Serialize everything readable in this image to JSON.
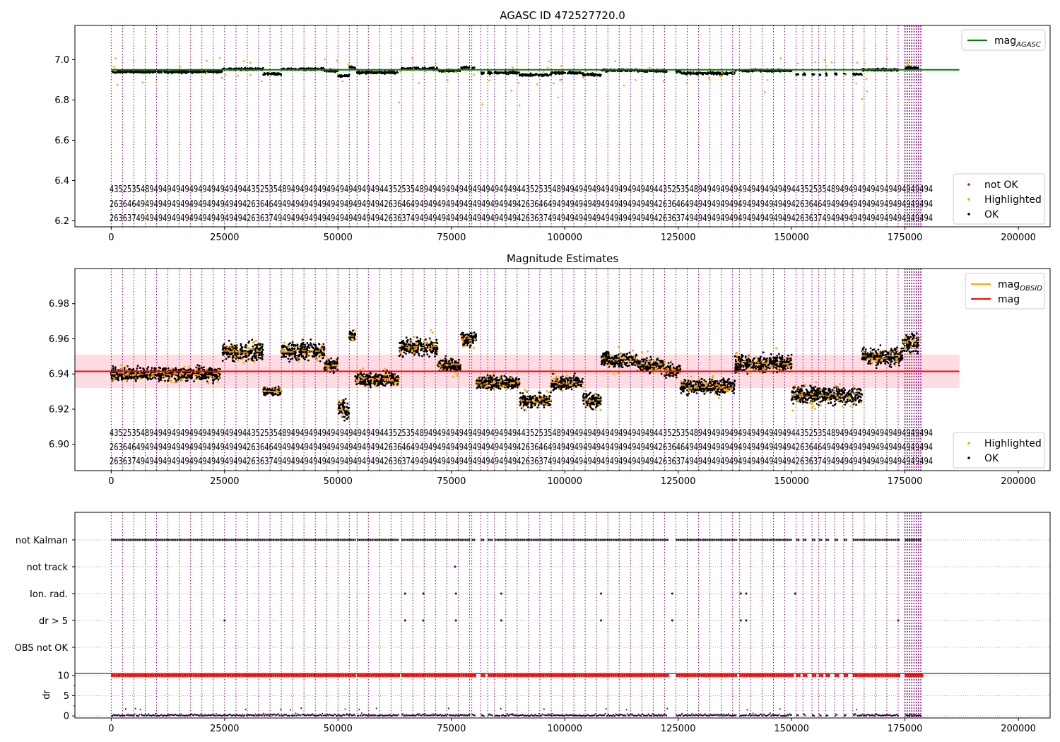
{
  "chart_data": [
    {
      "type": "scatter",
      "title": "AGASC ID 472527720.0",
      "xlim": [
        -8000,
        207000
      ],
      "ylim": [
        6.17,
        7.17
      ],
      "xticks": [
        0,
        25000,
        50000,
        75000,
        100000,
        125000,
        150000,
        175000,
        200000
      ],
      "xtick_labels": [
        "0",
        "25000",
        "50000",
        "75000",
        "100000",
        "125000",
        "150000",
        "175000",
        "200000"
      ],
      "yticks": [
        6.2,
        6.4,
        6.6,
        6.8,
        7.0
      ],
      "ytick_labels": [
        "6.2",
        "6.4",
        "6.6",
        "6.8",
        "7.0"
      ],
      "mag_agasc": 6.95,
      "legend_upper": [
        {
          "label": "mag",
          "sub": "AGASC",
          "color": "#008000"
        }
      ],
      "legend_lower": [
        {
          "label": "not OK",
          "color": "#ff0000"
        },
        {
          "label": "Highlighted",
          "color": "#ffa500"
        },
        {
          "label": "OK",
          "color": "#000000"
        }
      ],
      "obsid_rows": [
        "4352535489494949494949494949494",
        "2636464949494949494949494949494",
        "2636374949494949494949494949494"
      ]
    },
    {
      "type": "scatter",
      "title": "Magnitude Estimates",
      "xlim": [
        -8000,
        207000
      ],
      "ylim": [
        6.885,
        7.0
      ],
      "xticks": [
        0,
        25000,
        50000,
        75000,
        100000,
        125000,
        150000,
        175000,
        200000
      ],
      "xtick_labels": [
        "0",
        "25000",
        "50000",
        "75000",
        "100000",
        "125000",
        "150000",
        "175000",
        "200000"
      ],
      "yticks": [
        6.9,
        6.92,
        6.94,
        6.96,
        6.98
      ],
      "ytick_labels": [
        "6.90",
        "6.92",
        "6.94",
        "6.96",
        "6.98"
      ],
      "mag": 6.9415,
      "mag_band": [
        6.932,
        6.951
      ],
      "legend_upper": [
        {
          "label": "mag",
          "sub": "OBSID",
          "color": "#ffa500"
        },
        {
          "label": "mag",
          "sub": "",
          "color": "#ff0000"
        }
      ],
      "legend_lower": [
        {
          "label": "Highlighted",
          "color": "#ffa500"
        },
        {
          "label": "OK",
          "color": "#000000"
        }
      ],
      "segments": [
        {
          "x0": 0,
          "x1": 24000,
          "mid": 6.94,
          "spread": 0.006
        },
        {
          "x0": 24500,
          "x1": 33500,
          "mid": 6.953,
          "spread": 0.008
        },
        {
          "x0": 33500,
          "x1": 37500,
          "mid": 6.93,
          "spread": 0.004
        },
        {
          "x0": 37500,
          "x1": 47000,
          "mid": 6.953,
          "spread": 0.008
        },
        {
          "x0": 47000,
          "x1": 50000,
          "mid": 6.945,
          "spread": 0.006
        },
        {
          "x0": 50000,
          "x1": 52500,
          "mid": 6.92,
          "spread": 0.01
        },
        {
          "x0": 52500,
          "x1": 53800,
          "mid": 6.962,
          "spread": 0.005
        },
        {
          "x0": 53800,
          "x1": 63500,
          "mid": 6.937,
          "spread": 0.006
        },
        {
          "x0": 63500,
          "x1": 72000,
          "mid": 6.955,
          "spread": 0.008
        },
        {
          "x0": 72000,
          "x1": 77000,
          "mid": 6.945,
          "spread": 0.006
        },
        {
          "x0": 77000,
          "x1": 80500,
          "mid": 6.96,
          "spread": 0.006
        },
        {
          "x0": 80500,
          "x1": 90000,
          "mid": 6.935,
          "spread": 0.006
        },
        {
          "x0": 90000,
          "x1": 97000,
          "mid": 6.925,
          "spread": 0.007
        },
        {
          "x0": 97000,
          "x1": 104000,
          "mid": 6.935,
          "spread": 0.006
        },
        {
          "x0": 104000,
          "x1": 108000,
          "mid": 6.925,
          "spread": 0.007
        },
        {
          "x0": 108000,
          "x1": 116000,
          "mid": 6.948,
          "spread": 0.007
        },
        {
          "x0": 116000,
          "x1": 122000,
          "mid": 6.945,
          "spread": 0.007
        },
        {
          "x0": 122000,
          "x1": 125500,
          "mid": 6.942,
          "spread": 0.006
        },
        {
          "x0": 125500,
          "x1": 137500,
          "mid": 6.933,
          "spread": 0.007
        },
        {
          "x0": 137500,
          "x1": 150000,
          "mid": 6.946,
          "spread": 0.008
        },
        {
          "x0": 150000,
          "x1": 165500,
          "mid": 6.928,
          "spread": 0.008
        },
        {
          "x0": 165500,
          "x1": 174500,
          "mid": 6.95,
          "spread": 0.008
        },
        {
          "x0": 174500,
          "x1": 178000,
          "mid": 6.958,
          "spread": 0.01
        }
      ],
      "obsid_rows": [
        "4352535489494949494949494949494",
        "2636464949494949494949494949494",
        "2636374949494949494949494949494"
      ]
    },
    {
      "type": "scatter",
      "title": "",
      "xlim": [
        -8000,
        207000
      ],
      "categories": [
        "not Kalman",
        "not track",
        "Ion. rad.",
        "dr > 5",
        "OBS not OK"
      ],
      "dr_ylim": [
        -0.5,
        10.5
      ],
      "dr_yticks": [
        0,
        5,
        10
      ],
      "dr_ytick_labels": [
        "0",
        "5",
        "10"
      ],
      "dr_ylabel": "dr",
      "xticks": [
        0,
        25000,
        50000,
        75000,
        100000,
        125000,
        150000,
        175000,
        200000
      ],
      "xtick_labels": [
        "0",
        "25000",
        "50000",
        "75000",
        "100000",
        "125000",
        "150000",
        "175000",
        "200000"
      ]
    }
  ],
  "observation_blocks": [
    [
      0,
      53800
    ],
    [
      54200,
      63200
    ],
    [
      64000,
      79000
    ],
    [
      79500,
      80200
    ],
    [
      81500,
      82200
    ],
    [
      83000,
      84000
    ],
    [
      84500,
      122500
    ],
    [
      124500,
      137800
    ],
    [
      138500,
      150000
    ],
    [
      151000,
      151500
    ],
    [
      152500,
      153000
    ],
    [
      154500,
      155000
    ],
    [
      156000,
      156500
    ],
    [
      157500,
      158000
    ],
    [
      159500,
      160000
    ],
    [
      161500,
      162000
    ],
    [
      163500,
      173500
    ],
    [
      175000,
      178500
    ]
  ]
}
